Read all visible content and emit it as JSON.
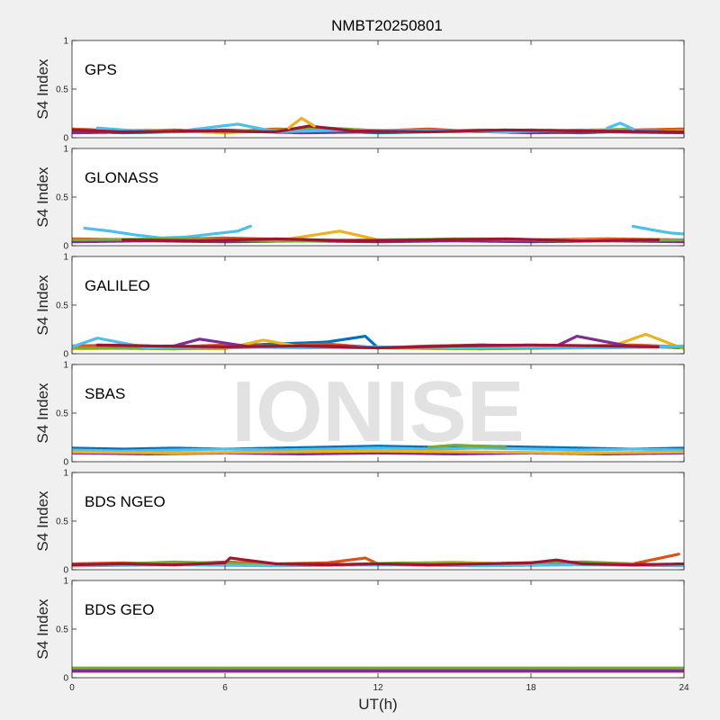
{
  "chart_data": {
    "type": "scatter",
    "title": "NMBT20250801",
    "xlabel": "UT(h)",
    "xlim": [
      0,
      24
    ],
    "xticks": [
      0,
      6,
      12,
      18,
      24
    ],
    "ylim": [
      0,
      1
    ],
    "yticks": [
      0,
      0.5,
      1
    ],
    "watermark": "IONISE",
    "palette": [
      "#0072BD",
      "#D95319",
      "#EDB120",
      "#7E2F8E",
      "#77AC30",
      "#4DBEEE",
      "#A2142F"
    ],
    "panels": [
      {
        "label": "GPS",
        "ylabel": "S4 Index",
        "tracks": [
          {
            "series": 0,
            "x": [
              0,
              2,
              4,
              6,
              8,
              10,
              12,
              14,
              16,
              18,
              20,
              22,
              24
            ],
            "y": [
              0.07,
              0.05,
              0.06,
              0.08,
              0.06,
              0.07,
              0.05,
              0.06,
              0.07,
              0.06,
              0.05,
              0.07,
              0.06
            ]
          },
          {
            "series": 1,
            "x": [
              0,
              2,
              4,
              6,
              8,
              10,
              12,
              14,
              16,
              18,
              20,
              22,
              24
            ],
            "y": [
              0.09,
              0.07,
              0.08,
              0.06,
              0.09,
              0.08,
              0.07,
              0.09,
              0.06,
              0.08,
              0.07,
              0.08,
              0.09
            ]
          },
          {
            "series": 2,
            "x": [
              0,
              3,
              6,
              9,
              12,
              15,
              18,
              21,
              24
            ],
            "y": [
              0.06,
              0.08,
              0.05,
              0.09,
              0.07,
              0.06,
              0.08,
              0.06,
              0.07
            ]
          },
          {
            "series": 3,
            "x": [
              0,
              3,
              6,
              9,
              12,
              15,
              18,
              21,
              24
            ],
            "y": [
              0.05,
              0.06,
              0.07,
              0.05,
              0.06,
              0.07,
              0.05,
              0.06,
              0.05
            ]
          },
          {
            "series": 4,
            "x": [
              1,
              4,
              7,
              10,
              13,
              16,
              19,
              22
            ],
            "y": [
              0.08,
              0.06,
              0.07,
              0.1,
              0.06,
              0.08,
              0.07,
              0.09
            ]
          },
          {
            "series": 5,
            "x": [
              1,
              2.5,
              4,
              6.5,
              8,
              11,
              14,
              17,
              20,
              23
            ],
            "y": [
              0.1,
              0.07,
              0.06,
              0.14,
              0.06,
              0.08,
              0.07,
              0.06,
              0.08,
              0.07
            ]
          },
          {
            "series": 6,
            "x": [
              0,
              2,
              5,
              8,
              9.3,
              11,
              14,
              17,
              20,
              24
            ],
            "y": [
              0.08,
              0.06,
              0.07,
              0.06,
              0.12,
              0.07,
              0.06,
              0.08,
              0.07,
              0.06
            ]
          },
          {
            "series": 2,
            "x": [
              8.5,
              9,
              9.5
            ],
            "y": [
              0.1,
              0.2,
              0.12
            ]
          },
          {
            "series": 5,
            "x": [
              21,
              21.5,
              22
            ],
            "y": [
              0.1,
              0.15,
              0.09
            ]
          }
        ]
      },
      {
        "label": "GLONASS",
        "ylabel": "S4 Index",
        "tracks": [
          {
            "series": 5,
            "x": [
              0.5,
              1.5,
              2.5,
              3.5,
              4.5,
              5.5,
              6.5,
              7
            ],
            "y": [
              0.18,
              0.15,
              0.11,
              0.08,
              0.09,
              0.12,
              0.15,
              0.2
            ]
          },
          {
            "series": 5,
            "x": [
              22,
              22.8,
              23.5,
              24
            ],
            "y": [
              0.2,
              0.16,
              0.13,
              0.12
            ]
          },
          {
            "series": 0,
            "x": [
              0,
              3,
              6,
              9,
              12,
              15,
              18,
              21,
              24
            ],
            "y": [
              0.06,
              0.05,
              0.06,
              0.05,
              0.06,
              0.05,
              0.06,
              0.05,
              0.06
            ]
          },
          {
            "series": 1,
            "x": [
              0,
              3,
              6,
              9,
              12,
              15,
              18,
              21,
              24
            ],
            "y": [
              0.07,
              0.06,
              0.08,
              0.06,
              0.05,
              0.07,
              0.06,
              0.07,
              0.06
            ]
          },
          {
            "series": 2,
            "x": [
              0,
              4,
              8,
              10.5,
              12,
              16,
              20,
              24
            ],
            "y": [
              0.05,
              0.06,
              0.05,
              0.15,
              0.06,
              0.05,
              0.06,
              0.05
            ]
          },
          {
            "series": 3,
            "x": [
              0,
              3,
              6,
              9,
              12,
              15,
              18,
              21,
              24
            ],
            "y": [
              0.04,
              0.05,
              0.04,
              0.05,
              0.04,
              0.05,
              0.04,
              0.05,
              0.04
            ]
          },
          {
            "series": 4,
            "x": [
              0,
              4,
              8,
              12,
              16,
              20,
              24
            ],
            "y": [
              0.06,
              0.07,
              0.05,
              0.06,
              0.07,
              0.05,
              0.06
            ]
          },
          {
            "series": 6,
            "x": [
              2,
              5,
              8,
              11,
              14,
              17,
              20,
              23
            ],
            "y": [
              0.06,
              0.05,
              0.07,
              0.05,
              0.06,
              0.07,
              0.05,
              0.06
            ]
          }
        ]
      },
      {
        "label": "GALILEO",
        "ylabel": "S4 Index",
        "tracks": [
          {
            "series": 0,
            "x": [
              0,
              2,
              4,
              6,
              8,
              10,
              11.5,
              12,
              14,
              16,
              18,
              20,
              22,
              24
            ],
            "y": [
              0.06,
              0.07,
              0.05,
              0.08,
              0.1,
              0.12,
              0.18,
              0.06,
              0.07,
              0.05,
              0.06,
              0.07,
              0.08,
              0.06
            ]
          },
          {
            "series": 1,
            "x": [
              0,
              2,
              4,
              6,
              8,
              10,
              12,
              14,
              16,
              18,
              20,
              22,
              24
            ],
            "y": [
              0.08,
              0.09,
              0.07,
              0.09,
              0.08,
              0.1,
              0.06,
              0.08,
              0.09,
              0.07,
              0.08,
              0.09,
              0.07
            ]
          },
          {
            "series": 2,
            "x": [
              0,
              3,
              6,
              7.5,
              9,
              12,
              15,
              18,
              21,
              22.5,
              24
            ],
            "y": [
              0.05,
              0.06,
              0.05,
              0.14,
              0.07,
              0.06,
              0.05,
              0.07,
              0.06,
              0.2,
              0.05
            ]
          },
          {
            "series": 3,
            "x": [
              1,
              4,
              5,
              7,
              10,
              13,
              16,
              19,
              19.8,
              22
            ],
            "y": [
              0.07,
              0.08,
              0.15,
              0.07,
              0.08,
              0.06,
              0.09,
              0.08,
              0.18,
              0.07
            ]
          },
          {
            "series": 4,
            "x": [
              0,
              4,
              8,
              12,
              16,
              20,
              24
            ],
            "y": [
              0.06,
              0.05,
              0.07,
              0.06,
              0.05,
              0.06,
              0.07
            ]
          },
          {
            "series": 5,
            "x": [
              0,
              1,
              3,
              6,
              9,
              12,
              15,
              18,
              21,
              24
            ],
            "y": [
              0.07,
              0.16,
              0.06,
              0.07,
              0.06,
              0.07,
              0.06,
              0.07,
              0.06,
              0.08
            ]
          },
          {
            "series": 6,
            "x": [
              1,
              3,
              6,
              9,
              12,
              15,
              18,
              21,
              23
            ],
            "y": [
              0.09,
              0.08,
              0.07,
              0.08,
              0.06,
              0.08,
              0.09,
              0.08,
              0.07
            ]
          }
        ]
      },
      {
        "label": "SBAS",
        "ylabel": "S4 Index",
        "tracks": [
          {
            "series": 0,
            "x": [
              0,
              2,
              4,
              6,
              8,
              10,
              12,
              14,
              16,
              18,
              20,
              22,
              24
            ],
            "y": [
              0.14,
              0.13,
              0.14,
              0.13,
              0.14,
              0.15,
              0.16,
              0.15,
              0.16,
              0.15,
              0.14,
              0.13,
              0.14
            ]
          },
          {
            "series": 5,
            "x": [
              0,
              2,
              4,
              6,
              8,
              10,
              12,
              14,
              16,
              18,
              20,
              22,
              24
            ],
            "y": [
              0.12,
              0.11,
              0.12,
              0.13,
              0.12,
              0.13,
              0.14,
              0.13,
              0.14,
              0.13,
              0.12,
              0.13,
              0.12
            ]
          },
          {
            "series": 3,
            "x": [
              0,
              3,
              6,
              9,
              12,
              15,
              18,
              21,
              24
            ],
            "y": [
              0.09,
              0.08,
              0.09,
              0.08,
              0.09,
              0.08,
              0.09,
              0.08,
              0.09
            ]
          },
          {
            "series": 2,
            "x": [
              0,
              4,
              8,
              12,
              16,
              20,
              24
            ],
            "y": [
              0.1,
              0.09,
              0.1,
              0.11,
              0.1,
              0.09,
              0.1
            ]
          },
          {
            "series": 4,
            "x": [
              14,
              15,
              16,
              17
            ],
            "y": [
              0.15,
              0.17,
              0.16,
              0.15
            ]
          }
        ]
      },
      {
        "label": "BDS NGEO",
        "ylabel": "S4 Index",
        "tracks": [
          {
            "series": 0,
            "x": [
              0,
              3,
              6,
              9,
              12,
              15,
              18,
              21,
              24
            ],
            "y": [
              0.05,
              0.06,
              0.05,
              0.06,
              0.05,
              0.06,
              0.05,
              0.06,
              0.05
            ]
          },
          {
            "series": 1,
            "x": [
              0,
              2,
              4,
              6,
              8,
              10,
              11.5,
              12,
              14,
              16,
              18,
              20,
              22,
              23.8
            ],
            "y": [
              0.06,
              0.07,
              0.06,
              0.08,
              0.06,
              0.07,
              0.12,
              0.06,
              0.07,
              0.06,
              0.07,
              0.08,
              0.06,
              0.16
            ]
          },
          {
            "series": 2,
            "x": [
              0,
              3,
              6,
              9,
              12,
              15,
              18,
              21,
              24
            ],
            "y": [
              0.04,
              0.05,
              0.06,
              0.05,
              0.06,
              0.08,
              0.05,
              0.06,
              0.05
            ]
          },
          {
            "series": 3,
            "x": [
              0,
              3,
              6,
              9,
              12,
              15,
              18,
              21,
              24
            ],
            "y": [
              0.05,
              0.06,
              0.05,
              0.06,
              0.05,
              0.06,
              0.05,
              0.06,
              0.05
            ]
          },
          {
            "series": 4,
            "x": [
              2,
              4,
              7,
              10,
              13,
              16,
              19,
              22
            ],
            "y": [
              0.06,
              0.08,
              0.06,
              0.05,
              0.07,
              0.06,
              0.08,
              0.06
            ]
          },
          {
            "series": 5,
            "x": [
              0,
              4,
              8,
              12,
              16,
              20,
              24
            ],
            "y": [
              0.04,
              0.05,
              0.04,
              0.05,
              0.04,
              0.05,
              0.04
            ]
          },
          {
            "series": 6,
            "x": [
              0,
              2,
              4,
              6,
              6.2,
              8,
              10,
              12,
              14,
              16,
              18,
              19,
              20,
              22,
              24
            ],
            "y": [
              0.05,
              0.06,
              0.05,
              0.07,
              0.12,
              0.06,
              0.05,
              0.06,
              0.05,
              0.06,
              0.07,
              0.1,
              0.06,
              0.05,
              0.06
            ]
          }
        ]
      },
      {
        "label": "BDS GEO",
        "ylabel": "S4 Index",
        "tracks": [
          {
            "series": 1,
            "x": [
              0,
              2,
              4,
              6,
              8,
              10,
              12,
              14,
              16,
              18,
              20,
              22,
              24
            ],
            "y": [
              0.08,
              0.08,
              0.07,
              0.08,
              0.08,
              0.07,
              0.08,
              0.08,
              0.07,
              0.08,
              0.08,
              0.07,
              0.08
            ]
          },
          {
            "series": 2,
            "x": [
              0,
              3,
              6,
              9,
              12,
              15,
              18,
              21,
              24
            ],
            "y": [
              0.06,
              0.06,
              0.06,
              0.06,
              0.06,
              0.06,
              0.06,
              0.06,
              0.06
            ]
          },
          {
            "series": 6,
            "x": [
              0,
              4,
              8,
              12,
              16,
              20,
              24
            ],
            "y": [
              0.09,
              0.09,
              0.09,
              0.09,
              0.09,
              0.09,
              0.09
            ]
          },
          {
            "series": 3,
            "x": [
              0,
              4,
              8,
              12,
              16,
              20,
              24
            ],
            "y": [
              0.07,
              0.07,
              0.07,
              0.07,
              0.07,
              0.07,
              0.07
            ]
          },
          {
            "series": 4,
            "x": [
              0,
              6,
              12,
              18,
              24
            ],
            "y": [
              0.1,
              0.1,
              0.1,
              0.1,
              0.1
            ]
          }
        ]
      }
    ]
  }
}
